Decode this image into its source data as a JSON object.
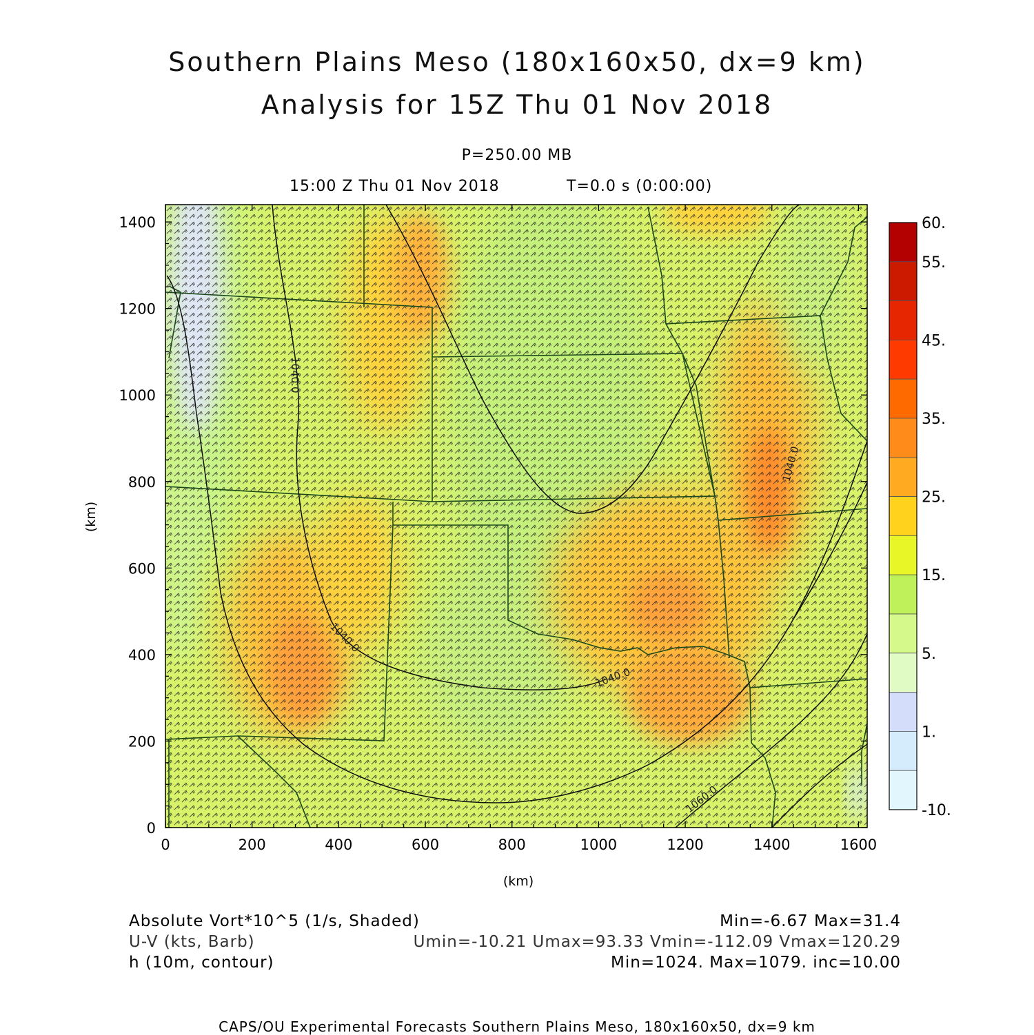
{
  "title": {
    "line1": "Southern Plains Meso (180x160x50, dx=9 km)",
    "line2": "Analysis for 15Z Thu 01 Nov 2018"
  },
  "level_label": "P=250.00 MB",
  "time_label": "15:00 Z Thu 01 Nov 2018",
  "t_label": "T=0.0 s (0:00:00)",
  "axes": {
    "x_label": "(km)",
    "y_label": "(km)",
    "x_range": [
      0,
      1620
    ],
    "y_range": [
      0,
      1440
    ],
    "x_ticks": [
      "0",
      "200",
      "400",
      "600",
      "800",
      "1000",
      "1200",
      "1400",
      "1600"
    ],
    "y_ticks": [
      "0",
      "200",
      "400",
      "600",
      "800",
      "1000",
      "1200",
      "1400"
    ]
  },
  "colorbar": {
    "labels": [
      "60.",
      "55.",
      "45.",
      "35.",
      "25.",
      "15.",
      "5.",
      "1.",
      "-10."
    ],
    "colors": [
      "#b30000",
      "#cc1a00",
      "#e62600",
      "#ff3a00",
      "#ff6a00",
      "#ff8c1a",
      "#ffaa20",
      "#ffd21e",
      "#e8f526",
      "#bff25a",
      "#d6f98c",
      "#e0fcc4",
      "#d4ddfa",
      "#d4ecfc",
      "#e2f6fe"
    ]
  },
  "contour_labels": {
    "west": "1040.0",
    "southwest": "1040.0",
    "south": "1040.0",
    "east": "1040.0",
    "southeast": "1060.0"
  },
  "footer": {
    "field1": "Absolute Vort*10^5 (1/s, Shaded)",
    "field1_stats": "Min=-6.67 Max=31.4",
    "field2": "U-V (kts, Barb)",
    "field2_stats": "Umin=-10.21 Umax=93.33 Vmin=-112.09 Vmax=120.29",
    "field3": "h (10m, contour)",
    "field3_stats": "Min=1024. Max=1079. inc=10.00",
    "credit": "CAPS/OU Experimental Forecasts  Southern Plains Meso, 180x160x50, dx=9 km"
  }
}
